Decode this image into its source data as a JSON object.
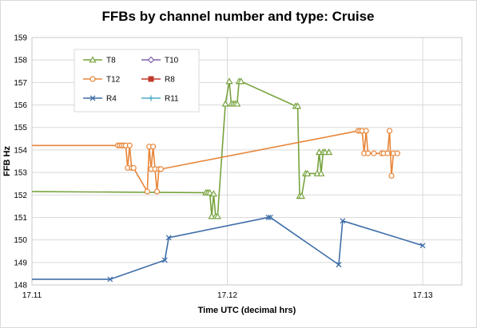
{
  "chart_data": {
    "type": "line",
    "title": "FFBs by channel number and type: Cruise",
    "xlabel": "Time UTC (decimal hrs)",
    "ylabel": "FFB Hz",
    "xlim": [
      17.11,
      17.132
    ],
    "ylim": [
      148,
      159
    ],
    "x_ticks": [
      "17.11",
      "17.12",
      "17.13"
    ],
    "x_tick_values": [
      17.11,
      17.12,
      17.13
    ],
    "y_ticks": [
      "148",
      "149",
      "150",
      "151",
      "152",
      "153",
      "154",
      "155",
      "156",
      "157",
      "158",
      "159"
    ],
    "y_tick_values": [
      148,
      149,
      150,
      151,
      152,
      153,
      154,
      155,
      156,
      157,
      158,
      159
    ],
    "grid": true,
    "legend_position": "top-left",
    "series": [
      {
        "name": "T8",
        "color": "#77A33E",
        "marker": "triangle",
        "x": [
          17.11,
          17.1189,
          17.119,
          17.1191,
          17.1192,
          17.1193,
          17.1194,
          17.1195,
          17.1199,
          17.1201,
          17.1202,
          17.1203,
          17.1204,
          17.1205,
          17.1206,
          17.1207,
          17.1235,
          17.1236,
          17.1237,
          17.1238,
          17.124,
          17.1241,
          17.1246,
          17.1247,
          17.1248,
          17.1249,
          17.125,
          17.1252
        ],
        "y": [
          152.15,
          152.1,
          152.1,
          152.1,
          151.05,
          152.05,
          151.05,
          151.05,
          156.05,
          157.05,
          156.05,
          156.05,
          156.05,
          156.05,
          157.05,
          157.05,
          155.95,
          155.95,
          151.95,
          151.95,
          152.95,
          152.95,
          152.95,
          153.9,
          152.95,
          153.9,
          153.9,
          153.9
        ]
      },
      {
        "name": "T10",
        "color": "#7E60A8",
        "marker": "diamond",
        "x": [],
        "y": []
      },
      {
        "name": "T12",
        "color": "#E8863A",
        "marker": "circle",
        "x": [
          17.11,
          17.1144,
          17.1145,
          17.1146,
          17.1147,
          17.1148,
          17.1149,
          17.115,
          17.1151,
          17.1152,
          17.1159,
          17.116,
          17.1161,
          17.1162,
          17.1163,
          17.1164,
          17.1165,
          17.1166,
          17.1267,
          17.1268,
          17.1269,
          17.127,
          17.1271,
          17.1272,
          17.1275,
          17.1279,
          17.128,
          17.1282,
          17.1283,
          17.1284,
          17.1285,
          17.1287
        ],
        "y": [
          154.2,
          154.2,
          154.2,
          154.2,
          154.2,
          154.2,
          153.2,
          154.2,
          153.2,
          153.2,
          152.15,
          154.15,
          153.15,
          154.15,
          153.15,
          152.15,
          153.15,
          153.15,
          154.85,
          154.85,
          154.85,
          153.85,
          154.85,
          153.85,
          153.85,
          153.85,
          153.85,
          153.85,
          154.85,
          152.85,
          153.85,
          153.85
        ]
      },
      {
        "name": "R8",
        "color": "#C0392B",
        "marker": "square",
        "x": [],
        "y": []
      },
      {
        "name": "R4",
        "color": "#3E6EA8",
        "marker": "x",
        "x": [
          17.11,
          17.114,
          17.1168,
          17.117,
          17.1221,
          17.1222,
          17.1257,
          17.1259,
          17.13
        ],
        "y": [
          148.25,
          148.25,
          149.1,
          150.1,
          151.0,
          151.0,
          148.9,
          150.85,
          149.75
        ]
      },
      {
        "name": "R11",
        "color": "#4BACC6",
        "marker": "plus",
        "x": [],
        "y": []
      }
    ]
  }
}
